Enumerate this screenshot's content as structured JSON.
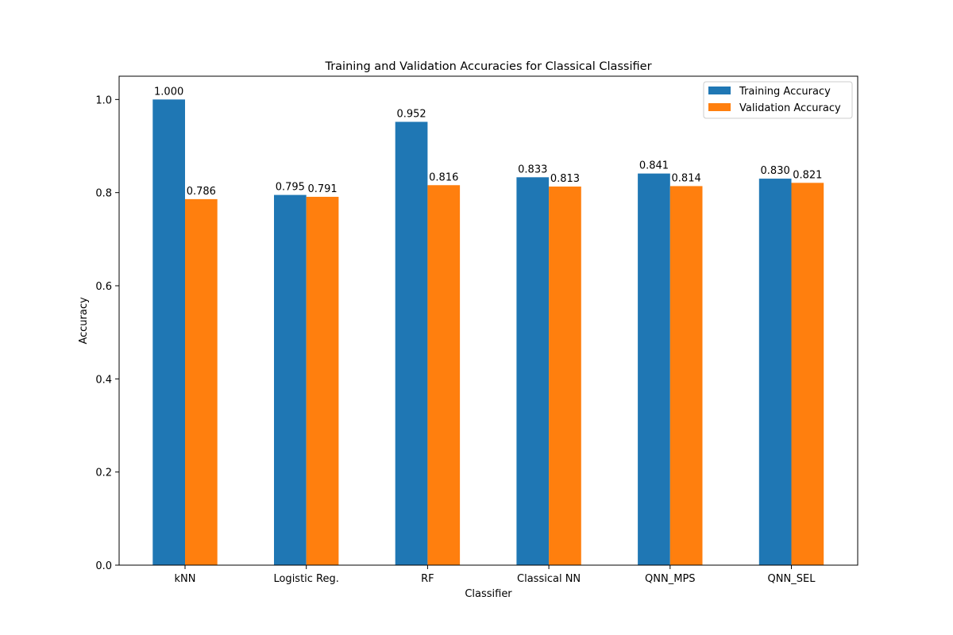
{
  "chart_data": {
    "type": "bar",
    "title": "Training and Validation Accuracies for Classical Classifier",
    "xlabel": "Classifier",
    "ylabel": "Accuracy",
    "ylim": [
      0,
      1.05
    ],
    "yticks": [
      "0.0",
      "0.2",
      "0.4",
      "0.6",
      "0.8",
      "1.0"
    ],
    "grid": false,
    "legend_position": "top-right",
    "categories": [
      "kNN",
      "Logistic Reg.",
      "RF",
      "Classical NN",
      "QNN_MPS",
      "QNN_SEL"
    ],
    "series": [
      {
        "name": "Training Accuracy",
        "color": "#1f77b4",
        "values": [
          1.0,
          0.795,
          0.952,
          0.833,
          0.841,
          0.83
        ],
        "labels": [
          "1.000",
          "0.795",
          "0.952",
          "0.833",
          "0.841",
          "0.830"
        ]
      },
      {
        "name": "Validation Accuracy",
        "color": "#ff7f0e",
        "values": [
          0.786,
          0.791,
          0.816,
          0.813,
          0.814,
          0.821
        ],
        "labels": [
          "0.786",
          "0.791",
          "0.816",
          "0.813",
          "0.814",
          "0.821"
        ]
      }
    ]
  }
}
